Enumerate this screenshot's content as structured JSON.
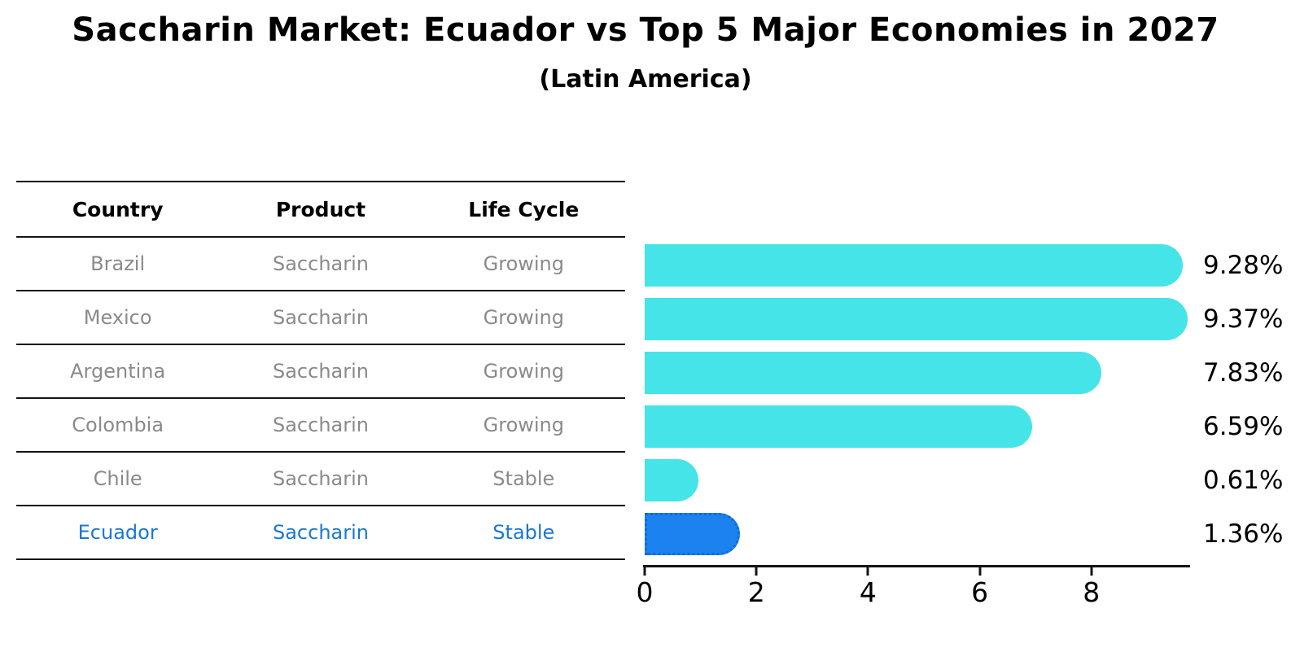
{
  "title": "Saccharin Market: Ecuador vs Top 5 Major Economies in 2027",
  "subtitle": "(Latin America)",
  "table": {
    "headers": [
      "Country",
      "Product",
      "Life Cycle"
    ],
    "rows": [
      {
        "country": "Brazil",
        "product": "Saccharin",
        "life_cycle": "Growing",
        "highlighted": false
      },
      {
        "country": "Mexico",
        "product": "Saccharin",
        "life_cycle": "Growing",
        "highlighted": false
      },
      {
        "country": "Argentina",
        "product": "Saccharin",
        "life_cycle": "Growing",
        "highlighted": false
      },
      {
        "country": "Colombia",
        "product": "Saccharin",
        "life_cycle": "Growing",
        "highlighted": false
      },
      {
        "country": "Chile",
        "product": "Saccharin",
        "life_cycle": "Stable",
        "highlighted": false
      },
      {
        "country": "Ecuador",
        "product": "Saccharin",
        "life_cycle": "Stable",
        "highlighted": true
      }
    ]
  },
  "chart_data": {
    "type": "bar",
    "orientation": "horizontal",
    "title": "Saccharin Market: Ecuador vs Top 5 Major Economies in 2027",
    "subtitle": "(Latin America)",
    "categories": [
      "Brazil",
      "Mexico",
      "Argentina",
      "Colombia",
      "Chile",
      "Ecuador"
    ],
    "values": [
      9.28,
      9.37,
      7.83,
      6.59,
      0.61,
      1.36
    ],
    "labels": [
      "9.28%",
      "9.37%",
      "7.83%",
      "6.59%",
      "0.61%",
      "1.36%"
    ],
    "x_ticks": [
      0,
      2,
      4,
      6,
      8
    ],
    "xlim": [
      0,
      9.8
    ],
    "grid": false,
    "legend": false,
    "bar_color": "#45e4e8",
    "highlight_color": "#1c82f0",
    "highlight_index": 5
  },
  "colors": {
    "bar_cyan": "#45e4e8",
    "bar_blue": "#1c82f0",
    "highlight_text_blue": "#1a78d2",
    "table_text_gray": "#8a8a8a",
    "line_black": "#141414"
  }
}
